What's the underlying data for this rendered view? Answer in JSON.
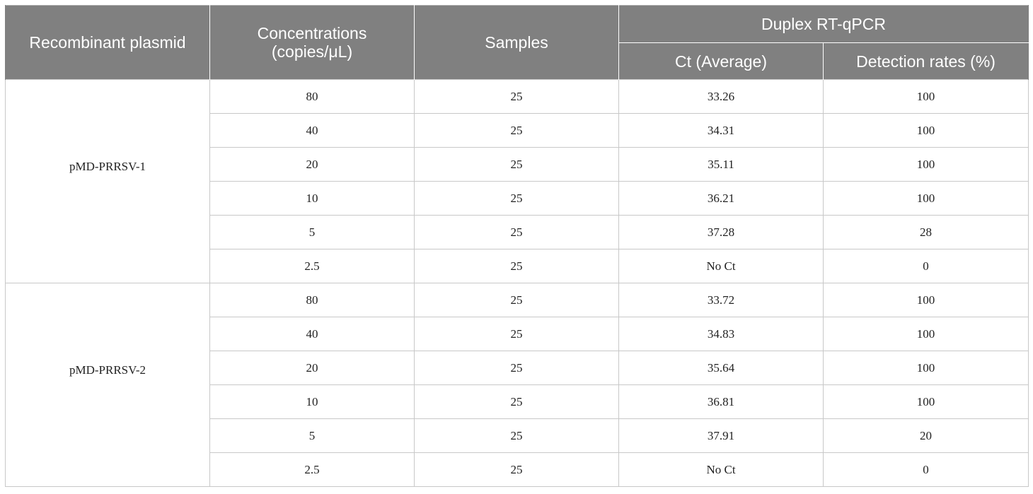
{
  "header": {
    "col1": "Recombinant plasmid",
    "col2_line1": "Concentrations",
    "col2_line2": "(copies/μL)",
    "col3": "Samples",
    "group": "Duplex RT-qPCR",
    "col4": "Ct (Average)",
    "col5": "Detection rates (%)"
  },
  "groups": [
    {
      "plasmid": "pMD-PRRSV-1",
      "rows": [
        {
          "conc": "80",
          "samples": "25",
          "ct": "33.26",
          "rate": "100"
        },
        {
          "conc": "40",
          "samples": "25",
          "ct": "34.31",
          "rate": "100"
        },
        {
          "conc": "20",
          "samples": "25",
          "ct": "35.11",
          "rate": "100"
        },
        {
          "conc": "10",
          "samples": "25",
          "ct": "36.21",
          "rate": "100"
        },
        {
          "conc": "5",
          "samples": "25",
          "ct": "37.28",
          "rate": "28"
        },
        {
          "conc": "2.5",
          "samples": "25",
          "ct": "No Ct",
          "rate": "0"
        }
      ]
    },
    {
      "plasmid": "pMD-PRRSV-2",
      "rows": [
        {
          "conc": "80",
          "samples": "25",
          "ct": "33.72",
          "rate": "100"
        },
        {
          "conc": "40",
          "samples": "25",
          "ct": "34.83",
          "rate": "100"
        },
        {
          "conc": "20",
          "samples": "25",
          "ct": "35.64",
          "rate": "100"
        },
        {
          "conc": "10",
          "samples": "25",
          "ct": "36.81",
          "rate": "100"
        },
        {
          "conc": "5",
          "samples": "25",
          "ct": "37.91",
          "rate": "20"
        },
        {
          "conc": "2.5",
          "samples": "25",
          "ct": "No Ct",
          "rate": "0"
        }
      ]
    }
  ]
}
